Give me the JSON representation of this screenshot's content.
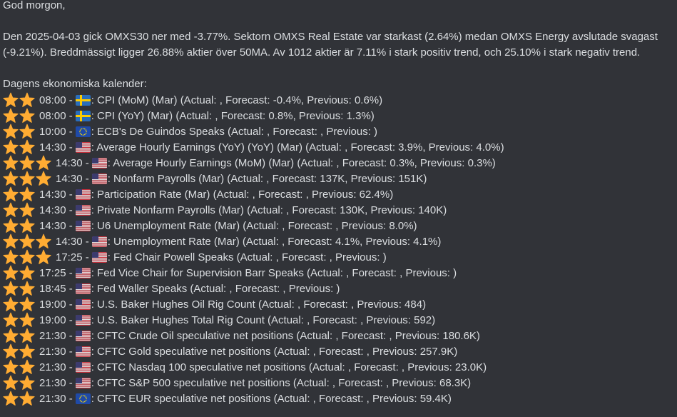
{
  "greeting": "God morgon,",
  "summary": "Den 2025-04-03 gick OMXS30 ner med -3.77%. Sektorn OMXS Real Estate var starkast (2.64%) medan OMXS Energy avslutade svagast (-9.21%). Breddmässigt ligger 26.88% aktier över 50MA. Av 1012 aktier är 7.11% i stark positiv trend, och 25.10% i stark negativ trend.",
  "calendar": {
    "heading": "Dagens ekonomiska kalender:",
    "items": [
      {
        "stars": 2,
        "time": "08:00 -",
        "country": "SE",
        "event": ": CPI (MoM) (Mar) (Actual: , Forecast: -0.4%, Previous: 0.6%)"
      },
      {
        "stars": 2,
        "time": "08:00 -",
        "country": "SE",
        "event": ": CPI (YoY) (Mar) (Actual: , Forecast: 0.8%, Previous: 1.3%)"
      },
      {
        "stars": 2,
        "time": "10:00 -",
        "country": "EU",
        "event": ": ECB's De Guindos Speaks (Actual: , Forecast: , Previous: )"
      },
      {
        "stars": 2,
        "time": "14:30 -",
        "country": "US",
        "event": ": Average Hourly Earnings (YoY) (YoY) (Mar) (Actual: , Forecast: 3.9%, Previous: 4.0%)"
      },
      {
        "stars": 3,
        "time": "14:30 -",
        "country": "US",
        "event": ": Average Hourly Earnings (MoM) (Mar) (Actual: , Forecast: 0.3%, Previous: 0.3%)"
      },
      {
        "stars": 3,
        "time": "14:30 -",
        "country": "US",
        "event": ": Nonfarm Payrolls (Mar) (Actual: , Forecast: 137K, Previous: 151K)"
      },
      {
        "stars": 2,
        "time": "14:30 -",
        "country": "US",
        "event": ": Participation Rate (Mar) (Actual: , Forecast: , Previous: 62.4%)"
      },
      {
        "stars": 2,
        "time": "14:30 -",
        "country": "US",
        "event": ": Private Nonfarm Payrolls (Mar) (Actual: , Forecast: 130K, Previous: 140K)"
      },
      {
        "stars": 2,
        "time": "14:30 -",
        "country": "US",
        "event": ": U6 Unemployment Rate (Mar) (Actual: , Forecast: , Previous: 8.0%)"
      },
      {
        "stars": 3,
        "time": "14:30 -",
        "country": "US",
        "event": ": Unemployment Rate (Mar) (Actual: , Forecast: 4.1%, Previous: 4.1%)"
      },
      {
        "stars": 3,
        "time": "17:25 -",
        "country": "US",
        "event": ": Fed Chair Powell Speaks (Actual: , Forecast: , Previous: )"
      },
      {
        "stars": 2,
        "time": "17:25 -",
        "country": "US",
        "event": ": Fed Vice Chair for Supervision Barr Speaks (Actual: , Forecast: , Previous: )"
      },
      {
        "stars": 2,
        "time": "18:45 -",
        "country": "US",
        "event": ": Fed Waller Speaks (Actual: , Forecast: , Previous: )"
      },
      {
        "stars": 2,
        "time": "19:00 -",
        "country": "US",
        "event": ": U.S. Baker Hughes Oil Rig Count (Actual: , Forecast: , Previous: 484)"
      },
      {
        "stars": 2,
        "time": "19:00 -",
        "country": "US",
        "event": ": U.S. Baker Hughes Total Rig Count (Actual: , Forecast: , Previous: 592)"
      },
      {
        "stars": 2,
        "time": "21:30 -",
        "country": "US",
        "event": ": CFTC Crude Oil speculative net positions (Actual: , Forecast: , Previous: 180.6K)"
      },
      {
        "stars": 2,
        "time": "21:30 -",
        "country": "US",
        "event": ": CFTC Gold speculative net positions (Actual: , Forecast: , Previous: 257.9K)"
      },
      {
        "stars": 2,
        "time": "21:30 -",
        "country": "US",
        "event": ": CFTC Nasdaq 100 speculative net positions (Actual: , Forecast: , Previous: 23.0K)"
      },
      {
        "stars": 2,
        "time": "21:30 -",
        "country": "US",
        "event": ": CFTC S&P 500 speculative net positions (Actual: , Forecast: , Previous: 68.3K)"
      },
      {
        "stars": 2,
        "time": "21:30 -",
        "country": "EU",
        "event": ": CFTC EUR speculative net positions (Actual: , Forecast: , Previous: 59.4K)"
      }
    ]
  }
}
